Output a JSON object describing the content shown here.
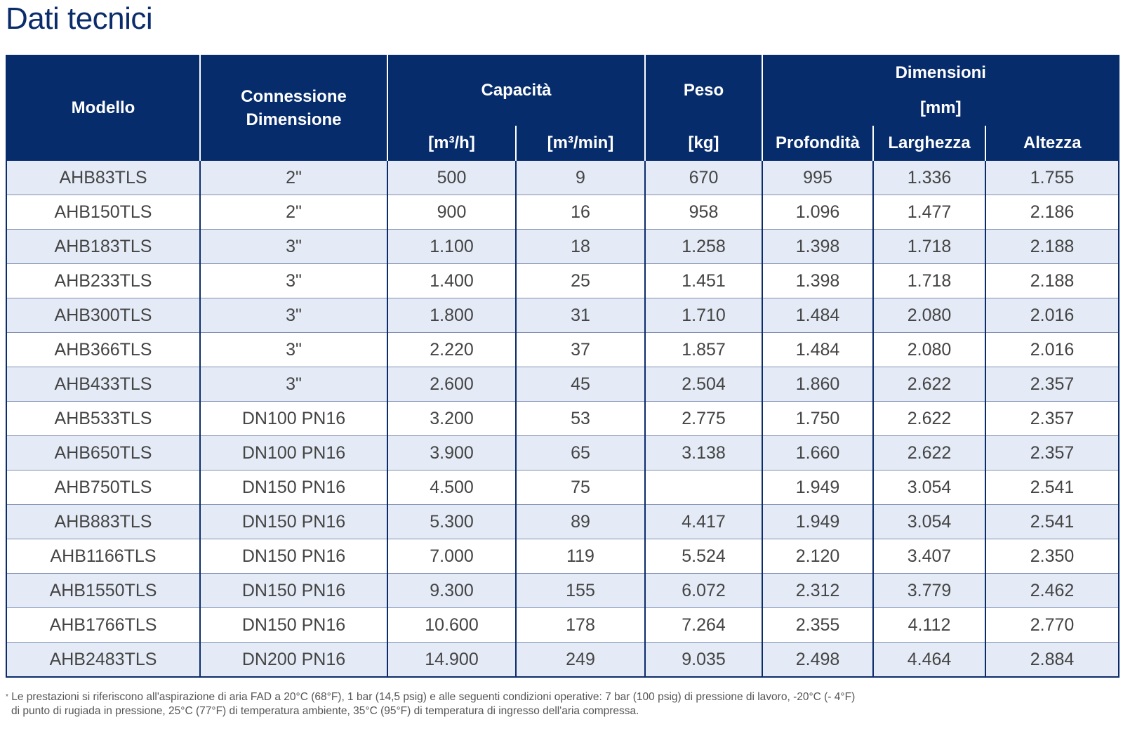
{
  "title": "Dati tecnici",
  "table": {
    "headers": {
      "modello": "Modello",
      "connessione": "Connessione Dimensione",
      "capacita": "Capacità",
      "peso": "Peso",
      "dimensioni": "Dimensioni",
      "dimensioni_unit": "[mm]",
      "capacita_unit_h": "[m³/h]",
      "capacita_unit_min": "[m³/min]",
      "peso_unit": "[kg]",
      "profondita": "Profondità",
      "larghezza": "Larghezza",
      "altezza": "Altezza"
    },
    "rows": [
      [
        "AHB83TLS",
        "2\"",
        "500",
        "9",
        "670",
        "995",
        "1.336",
        "1.755"
      ],
      [
        "AHB150TLS",
        "2\"",
        "900",
        "16",
        "958",
        "1.096",
        "1.477",
        "2.186"
      ],
      [
        "AHB183TLS",
        "3\"",
        "1.100",
        "18",
        "1.258",
        "1.398",
        "1.718",
        "2.188"
      ],
      [
        "AHB233TLS",
        "3\"",
        "1.400",
        "25",
        "1.451",
        "1.398",
        "1.718",
        "2.188"
      ],
      [
        "AHB300TLS",
        "3\"",
        "1.800",
        "31",
        "1.710",
        "1.484",
        "2.080",
        "2.016"
      ],
      [
        "AHB366TLS",
        "3\"",
        "2.220",
        "37",
        "1.857",
        "1.484",
        "2.080",
        "2.016"
      ],
      [
        "AHB433TLS",
        "3\"",
        "2.600",
        "45",
        "2.504",
        "1.860",
        "2.622",
        "2.357"
      ],
      [
        "AHB533TLS",
        "DN100 PN16",
        "3.200",
        "53",
        "2.775",
        "1.750",
        "2.622",
        "2.357"
      ],
      [
        "AHB650TLS",
        "DN100 PN16",
        "3.900",
        "65",
        "3.138",
        "1.660",
        "2.622",
        "2.357"
      ],
      [
        "AHB750TLS",
        "DN150 PN16",
        "4.500",
        "75",
        "",
        "1.949",
        "3.054",
        "2.541"
      ],
      [
        "AHB883TLS",
        "DN150 PN16",
        "5.300",
        "89",
        "4.417",
        "1.949",
        "3.054",
        "2.541"
      ],
      [
        "AHB1166TLS",
        "DN150 PN16",
        "7.000",
        "119",
        "5.524",
        "2.120",
        "3.407",
        "2.350"
      ],
      [
        "AHB1550TLS",
        "DN150 PN16",
        "9.300",
        "155",
        "6.072",
        "2.312",
        "3.779",
        "2.462"
      ],
      [
        "AHB1766TLS",
        "DN150 PN16",
        "10.600",
        "178",
        "7.264",
        "2.355",
        "4.112",
        "2.770"
      ],
      [
        "AHB2483TLS",
        "DN200 PN16",
        "14.900",
        "249",
        "9.035",
        "2.498",
        "4.464",
        "2.884"
      ]
    ]
  },
  "footnote": {
    "marker": "*",
    "line1": "Le prestazioni si riferiscono all'aspirazione di aria FAD a 20°C (68°F), 1 bar (14,5 psig) e alle seguenti condizioni operative: 7 bar (100 psig) di pressione di lavoro, -20°C (- 4°F)",
    "line2": "di punto di rugiada in pressione, 25°C (77°F) di temperatura ambiente, 35°C (95°F) di temperatura di ingresso dell'aria compressa."
  },
  "colors": {
    "header_bg": "#062c6c",
    "title": "#0b2c6b",
    "row_alt_bg": "#e4ebf6"
  }
}
